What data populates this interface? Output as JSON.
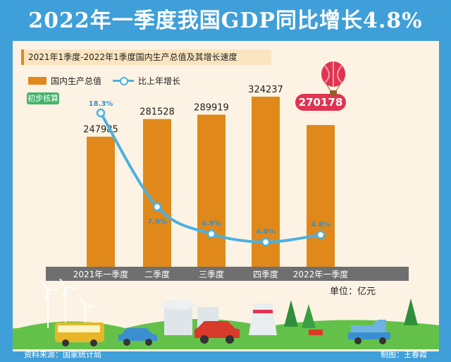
{
  "title": "2022年一季度我国GDP同比增长4.8%",
  "subtitle": "2021年1季度-2022年1季度国内生产总值及其增长速度",
  "legend": {
    "bar": "国内生产总值",
    "line": "比上年增长"
  },
  "badge": "初步核算",
  "unit": "单位：亿元",
  "source": "资料来源：国家统计局",
  "credit": "制图：王春霞",
  "colors": {
    "bar": "#e0891a",
    "line": "#4bb1e0",
    "highlight": "#e03450",
    "axis_band": "#6f6f6f"
  },
  "chart_data": {
    "type": "bar",
    "categories": [
      "2021年一季度",
      "二季度",
      "三季度",
      "四季度",
      "2022年一季度"
    ],
    "series": [
      {
        "name": "国内生产总值",
        "type": "bar",
        "values": [
          247985,
          281528,
          289919,
          324237,
          270178
        ]
      },
      {
        "name": "比上年增长",
        "type": "line",
        "values": [
          18.3,
          7.9,
          4.9,
          4.0,
          4.8
        ]
      }
    ],
    "bar_labels": [
      "247985",
      "281528",
      "289919",
      "324237",
      "270178"
    ],
    "line_labels": [
      "18.3%",
      "7.9%",
      "4.9%",
      "4.0%",
      "4.8%"
    ]
  }
}
